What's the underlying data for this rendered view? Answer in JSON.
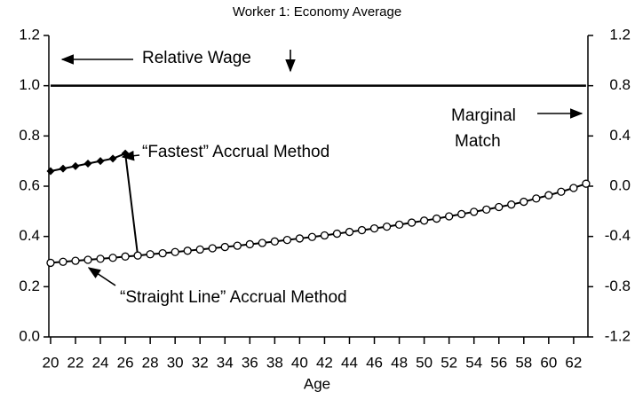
{
  "chart_data": {
    "type": "line",
    "title": "Worker 1: Economy Average",
    "xlabel": "Age",
    "xlim": [
      19.86,
      63.15
    ],
    "xticks": [
      20,
      22,
      24,
      26,
      28,
      30,
      32,
      34,
      36,
      38,
      40,
      42,
      44,
      46,
      48,
      50,
      52,
      54,
      56,
      58,
      60,
      62
    ],
    "ylim": [
      0,
      1.2
    ],
    "yticks": [
      {
        "value": 0,
        "label": "0.0"
      },
      0.2,
      0.4,
      0.6,
      0.8,
      {
        "value": 1,
        "label": "1.0"
      },
      1.2
    ],
    "y2lim": [
      -1.2,
      1.2
    ],
    "y2ticks": [
      -1.2,
      -0.8,
      -0.4,
      {
        "value": 0,
        "label": "0.0"
      },
      0.4,
      0.8,
      1.2
    ],
    "series": [
      {
        "name": "Relative Wage",
        "color": "#000000",
        "marker": "none",
        "x": [
          20,
          63
        ],
        "values": [
          1.0,
          1.0
        ]
      },
      {
        "name": "“Fastest” Accrual Method",
        "color": "#000000",
        "marker": "diamond",
        "x": [
          20,
          21,
          22,
          23,
          24,
          25,
          26,
          27
        ],
        "values": [
          0.66,
          0.67,
          0.68,
          0.69,
          0.7,
          0.71,
          0.73,
          0.324
        ]
      },
      {
        "name": "“Straight Line” Accrual Method",
        "color": "#000000",
        "marker": "circle",
        "x": [
          20,
          21,
          22,
          23,
          24,
          25,
          26,
          27,
          28,
          29,
          30,
          31,
          32,
          33,
          34,
          35,
          36,
          37,
          38,
          39,
          40,
          41,
          42,
          43,
          44,
          45,
          46,
          47,
          48,
          49,
          50,
          51,
          52,
          53,
          54,
          55,
          56,
          57,
          58,
          59,
          60,
          61,
          62,
          63
        ],
        "values": [
          0.295,
          0.299,
          0.303,
          0.307,
          0.311,
          0.315,
          0.32,
          0.324,
          0.329,
          0.333,
          0.338,
          0.343,
          0.348,
          0.353,
          0.358,
          0.363,
          0.369,
          0.374,
          0.38,
          0.386,
          0.392,
          0.398,
          0.404,
          0.411,
          0.418,
          0.425,
          0.432,
          0.439,
          0.447,
          0.455,
          0.463,
          0.471,
          0.48,
          0.489,
          0.498,
          0.507,
          0.517,
          0.527,
          0.538,
          0.551,
          0.564,
          0.578,
          0.593,
          0.61
        ]
      }
    ],
    "annotations": [
      {
        "lines": [
          "Marginal",
          "Match"
        ]
      }
    ]
  }
}
